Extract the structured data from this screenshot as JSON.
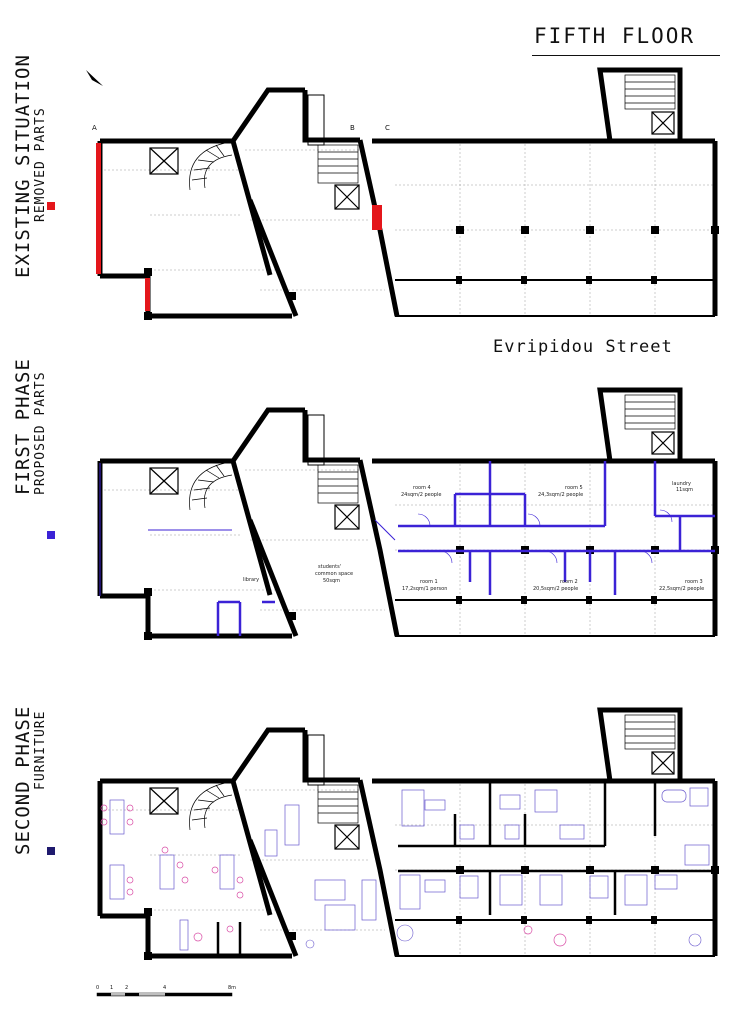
{
  "title": "FIFTH FLOOR",
  "street_label": "Evripidou Street",
  "phases": [
    {
      "title": "EXISTING SITUATION",
      "subtitle": "REMOVED PARTS",
      "legend_color": "#e4161b"
    },
    {
      "title": "FIRST PHASE",
      "subtitle": "PROPOSED PARTS",
      "legend_color": "#3b22d6"
    },
    {
      "title": "SECOND PHASE",
      "subtitle": "FURNITURE",
      "legend_color": "#1f1a6e"
    }
  ],
  "grid_axes": [
    "A",
    "B",
    "C"
  ],
  "rooms": {
    "library": "library",
    "students_1": "students'",
    "students_2": "common space",
    "students_3": "50sqm",
    "room4_1": "room 4",
    "room4_2": "24sqm/2 people",
    "room5_1": "room 5",
    "room5_2": "24,3sqm/2 people",
    "laundry_1": "laundry",
    "laundry_2": "11sqm",
    "room1_1": "room 1",
    "room1_2": "17,2sqm/1 person",
    "room2_1": "room 2",
    "room2_2": "20,5sqm/2 people",
    "room3_1": "room 3",
    "room3_2": "22,5sqm/2 people"
  },
  "scale_bar": {
    "labels": [
      "0",
      "1",
      "2",
      "4",
      "8m"
    ]
  },
  "icons": [
    "north-arrow-icon"
  ]
}
